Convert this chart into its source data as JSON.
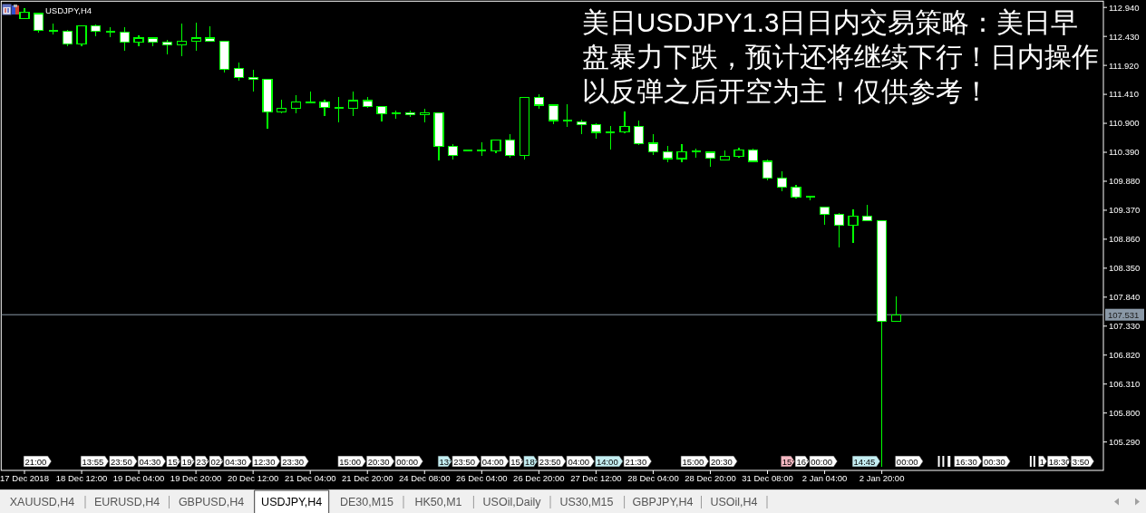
{
  "chart_data": {
    "type": "candlestick",
    "title": "美日USDJPY1.3日日内交易策略：美日早盘暴力下跌，预计还将继续下行！日内操作以反弹之后开空为主！仅供参考！",
    "categories": [
      "17 Dec 2018",
      null,
      null,
      null,
      "18 Dec 12:00",
      null,
      null,
      null,
      "19 Dec 04:00",
      null,
      null,
      null,
      "19 Dec 20:00",
      null,
      null,
      null,
      "20 Dec 12:00",
      null,
      null,
      null,
      "21 Dec 04:00",
      null,
      null,
      null,
      "21 Dec 20:00",
      null,
      null,
      null,
      "24 Dec 08:00",
      null,
      null,
      null,
      "26 Dec 04:00",
      null,
      null,
      null,
      "26 Dec 20:00",
      null,
      null,
      null,
      "27 Dec 12:00",
      null,
      null,
      null,
      "28 Dec 04:00",
      null,
      null,
      null,
      "28 Dec 20:00",
      null,
      null,
      null,
      "31 Dec 08:00",
      null,
      null,
      null,
      "2 Jan 04:00",
      null,
      null,
      null,
      "2 Jan 20:00",
      null,
      null,
      null,
      null,
      null,
      null,
      null,
      null,
      null,
      null,
      null,
      null,
      null,
      null,
      null
    ],
    "ohlc": [
      [
        112.75,
        112.92,
        112.74,
        112.86
      ],
      [
        112.83,
        112.85,
        112.49,
        112.54
      ],
      [
        112.53,
        112.66,
        112.46,
        112.53
      ],
      [
        112.52,
        112.55,
        112.25,
        112.3
      ],
      [
        112.3,
        112.63,
        112.26,
        112.62
      ],
      [
        112.62,
        112.64,
        112.43,
        112.52
      ],
      [
        112.52,
        112.6,
        112.41,
        112.52
      ],
      [
        112.51,
        112.6,
        112.18,
        112.33
      ],
      [
        112.33,
        112.45,
        112.25,
        112.4
      ],
      [
        112.4,
        112.42,
        112.26,
        112.33
      ],
      [
        112.33,
        112.37,
        112.12,
        112.28
      ],
      [
        112.28,
        112.65,
        112.08,
        112.35
      ],
      [
        112.34,
        112.67,
        112.18,
        112.4
      ],
      [
        112.4,
        112.61,
        112.34,
        112.34
      ],
      [
        112.35,
        112.35,
        111.79,
        111.85
      ],
      [
        111.86,
        111.97,
        111.65,
        111.71
      ],
      [
        111.71,
        111.84,
        111.46,
        111.68
      ],
      [
        111.68,
        111.68,
        110.81,
        111.1
      ],
      [
        111.1,
        111.32,
        111.08,
        111.17
      ],
      [
        111.16,
        111.4,
        111.08,
        111.28
      ],
      [
        111.26,
        111.46,
        111.26,
        111.28
      ],
      [
        111.27,
        111.32,
        111.03,
        111.18
      ],
      [
        111.18,
        111.37,
        110.92,
        111.18
      ],
      [
        111.17,
        111.46,
        111.03,
        111.3
      ],
      [
        111.3,
        111.37,
        111.17,
        111.19
      ],
      [
        111.2,
        111.2,
        110.94,
        111.07
      ],
      [
        111.08,
        111.13,
        110.98,
        111.08
      ],
      [
        111.09,
        111.12,
        111.02,
        111.05
      ],
      [
        111.05,
        111.16,
        110.92,
        111.09
      ],
      [
        111.09,
        111.1,
        110.25,
        110.5
      ],
      [
        110.5,
        110.53,
        110.27,
        110.34
      ],
      [
        110.42,
        110.43,
        110.41,
        110.42
      ],
      [
        110.42,
        110.56,
        110.32,
        110.42
      ],
      [
        110.42,
        110.61,
        110.37,
        110.61
      ],
      [
        110.61,
        110.71,
        110.3,
        110.34
      ],
      [
        110.34,
        111.36,
        110.27,
        111.36
      ],
      [
        111.36,
        111.41,
        111.16,
        111.22
      ],
      [
        111.22,
        111.24,
        110.89,
        110.95
      ],
      [
        110.95,
        111.24,
        110.84,
        110.95
      ],
      [
        110.93,
        110.96,
        110.71,
        110.88
      ],
      [
        110.88,
        110.9,
        110.63,
        110.74
      ],
      [
        110.74,
        110.85,
        110.44,
        110.74
      ],
      [
        110.75,
        111.11,
        110.72,
        110.85
      ],
      [
        110.85,
        110.95,
        110.51,
        110.54
      ],
      [
        110.55,
        110.71,
        110.35,
        110.4
      ],
      [
        110.4,
        110.5,
        110.22,
        110.28
      ],
      [
        110.28,
        110.53,
        110.22,
        110.4
      ],
      [
        110.4,
        110.46,
        110.3,
        110.4
      ],
      [
        110.39,
        110.39,
        110.14,
        110.29
      ],
      [
        110.26,
        110.42,
        110.24,
        110.32
      ],
      [
        110.32,
        110.47,
        110.3,
        110.43
      ],
      [
        110.43,
        110.46,
        110.22,
        110.23
      ],
      [
        110.23,
        110.26,
        109.9,
        109.93
      ],
      [
        109.94,
        110.06,
        109.7,
        109.78
      ],
      [
        109.78,
        109.82,
        109.58,
        109.6
      ],
      [
        109.61,
        109.63,
        109.55,
        109.61
      ],
      [
        109.43,
        109.43,
        109.12,
        109.3
      ],
      [
        109.3,
        109.32,
        108.71,
        109.11
      ],
      [
        109.11,
        109.39,
        108.8,
        109.27
      ],
      [
        109.27,
        109.47,
        109.17,
        109.19
      ],
      [
        109.19,
        109.19,
        104.86,
        107.42
      ],
      [
        107.42,
        107.86,
        107.42,
        107.531
      ],
      null,
      null,
      null,
      null,
      null,
      null,
      null,
      null,
      null,
      null,
      null,
      null,
      null,
      null
    ],
    "color": "#00ff00",
    "colors": [
      "#000000",
      "#ffffff",
      "#00ff00",
      "#ffffff",
      "#000000",
      "#ffffff",
      "#00ff00",
      "#ffffff",
      "#000000",
      "#ffffff",
      "#ffffff",
      "#000000",
      "#000000",
      "#ffffff",
      "#ffffff",
      "#ffffff",
      "#ffffff",
      "#ffffff",
      "#000000",
      "#000000",
      "#000000",
      "#ffffff",
      "#00ff00",
      "#000000",
      "#ffffff",
      "#ffffff",
      "#00ff00",
      "#ffffff",
      "#000000",
      "#ffffff",
      "#ffffff",
      "#00ff00",
      "#00ff00",
      "#000000",
      "#ffffff",
      "#000000",
      "#ffffff",
      "#ffffff",
      "#00ff00",
      "#ffffff",
      "#ffffff",
      "#00ff00",
      "#000000",
      "#ffffff",
      "#ffffff",
      "#ffffff",
      "#000000",
      "#00ff00",
      "#ffffff",
      "#000000",
      "#000000",
      "#ffffff",
      "#ffffff",
      "#ffffff",
      "#ffffff",
      "#00ff00",
      "#ffffff",
      "#ffffff",
      "#000000",
      "#ffffff",
      "#ffffff",
      "#000000",
      null,
      null,
      null,
      null,
      null,
      null,
      null,
      null,
      null,
      null,
      null,
      null,
      null,
      null
    ],
    "ylim": [
      104.79,
      113.05
    ],
    "yticks": [
      {
        "value": 112.94,
        "label": "112.940"
      },
      {
        "value": 112.43,
        "label": "112.430"
      },
      {
        "value": 111.92,
        "label": "111.920"
      },
      {
        "value": 111.41,
        "label": "111.410"
      },
      {
        "value": 110.9,
        "label": "110.900"
      },
      {
        "value": 110.39,
        "label": "110.390"
      },
      {
        "value": 109.88,
        "label": "109.880"
      },
      {
        "value": 109.37,
        "label": "109.370"
      },
      {
        "value": 108.86,
        "label": "108.860"
      },
      {
        "value": 108.35,
        "label": "108.350"
      },
      {
        "value": 107.84,
        "label": "107.840"
      },
      {
        "value": 107.33,
        "label": "107.330"
      },
      {
        "value": 106.82,
        "label": "106.820"
      },
      {
        "value": 106.31,
        "label": "106.310"
      },
      {
        "value": 105.8,
        "label": "105.800"
      },
      {
        "value": 105.29,
        "label": "105.290"
      }
    ],
    "ref_lines": [
      {
        "axis": "y",
        "value": 107.531,
        "label": "107.531",
        "color": "#8a98a6"
      }
    ],
    "annotations": [
      "USDJPY,H4",
      "21:00",
      "13:55",
      "23:50",
      "04:30",
      "15:",
      "19:",
      "23:",
      "02:",
      "04:30",
      "12:30",
      "23:30",
      "15:00",
      "20:30",
      "00:00",
      "13:",
      "23:50",
      "04:00",
      "15:",
      "18:",
      "23:50",
      "04:00",
      "14:00",
      "21:30",
      "15:00",
      "20:30",
      "15:",
      "16:",
      "00:00",
      "14:45",
      "00:00",
      "16:30",
      "00:30",
      "1",
      "18:30",
      "3:50",
      "XAUUSD,H4",
      "EURUSD,H4",
      "GBPUSD,H4",
      "USDJPY,H4",
      "DE30,M15",
      "HK50,M1",
      "USOil,Daily",
      "US30,M15",
      "GBPJPY,H4",
      "USOil,H4"
    ]
  }
}
